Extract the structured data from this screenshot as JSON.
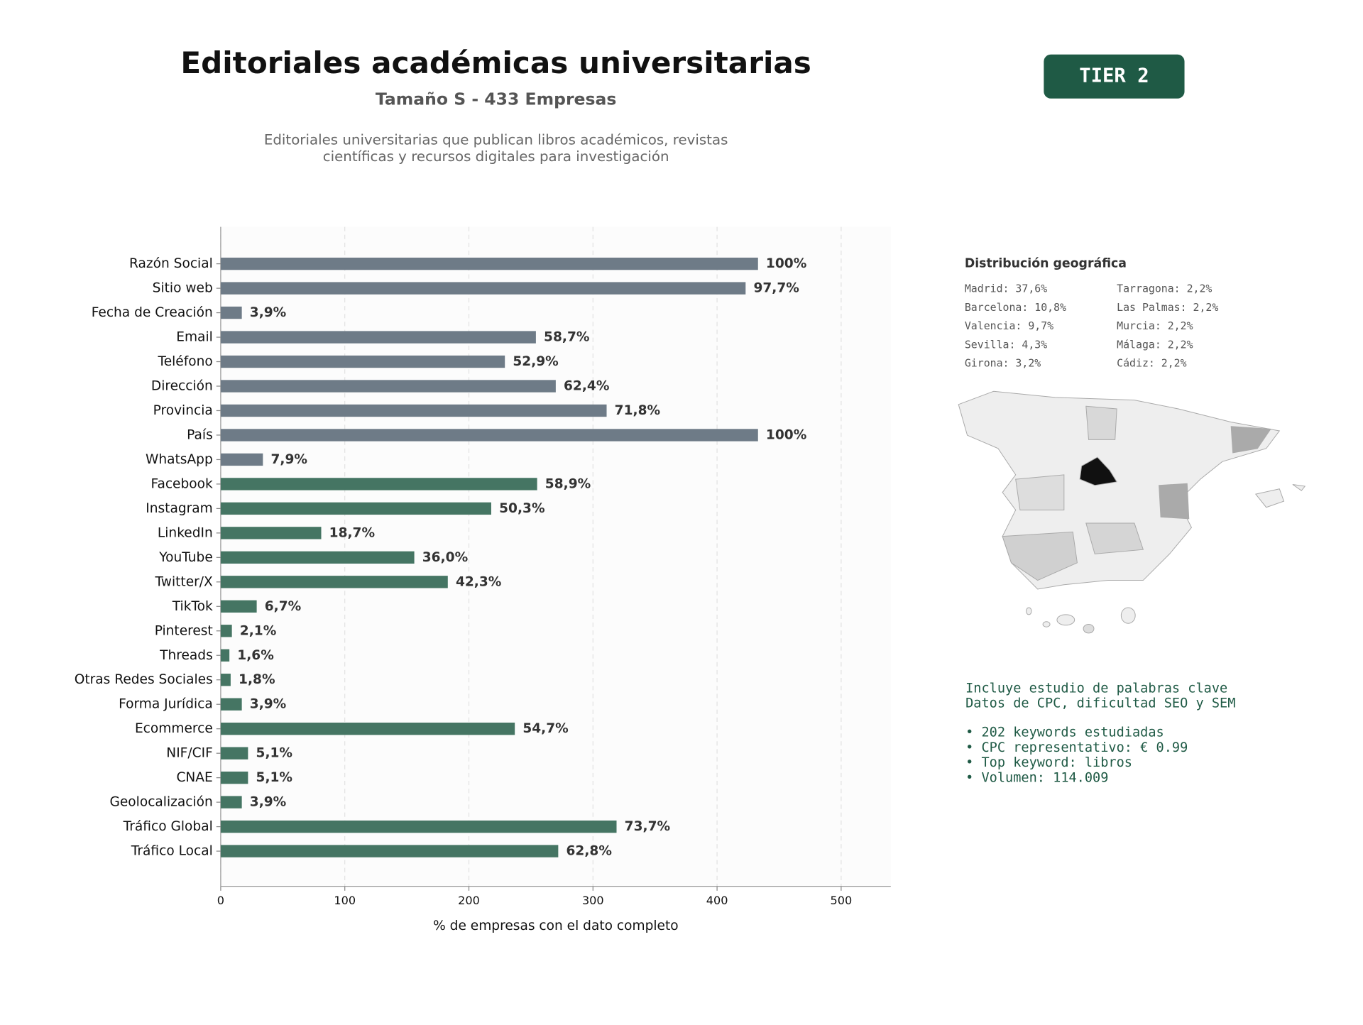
{
  "chart_data": {
    "type": "bar",
    "orientation": "horizontal",
    "title": "Editoriales académicas universitarias",
    "subtitle": "Tamaño S - 433 Empresas",
    "description": [
      "Editoriales universitarias que publican libros académicos, revistas",
      "científicas y recursos digitales para investigación"
    ],
    "xlabel": "% de empresas con el dato completo",
    "categories": [
      "Razón Social",
      "Sitio web",
      "Fecha de Creación",
      "Email",
      "Teléfono",
      "Dirección",
      "Provincia",
      "País",
      "WhatsApp",
      "Facebook",
      "Instagram",
      "LinkedIn",
      "YouTube",
      "Twitter/X",
      "TikTok",
      "Pinterest",
      "Threads",
      "Otras Redes Sociales",
      "Forma Jurídica",
      "Ecommerce",
      "NIF/CIF",
      "CNAE",
      "Geolocalización",
      "Tráfico Global",
      "Tráfico Local"
    ],
    "values": [
      433,
      423,
      17,
      254,
      229,
      270,
      311,
      433,
      34,
      255,
      218,
      81,
      156,
      183,
      29,
      9,
      7,
      8,
      17,
      237,
      22,
      22,
      17,
      319,
      272
    ],
    "value_labels": [
      "100%",
      "97,7%",
      "3,9%",
      "58,7%",
      "52,9%",
      "62,4%",
      "71,8%",
      "100%",
      "7,9%",
      "58,9%",
      "50,3%",
      "18,7%",
      "36,0%",
      "42,3%",
      "6,7%",
      "2,1%",
      "1,6%",
      "1,8%",
      "3,9%",
      "54,7%",
      "5,1%",
      "5,1%",
      "3,9%",
      "73,7%",
      "62,8%"
    ],
    "colors": [
      "#6e7b87",
      "#6e7b87",
      "#6e7b87",
      "#6e7b87",
      "#6e7b87",
      "#6e7b87",
      "#6e7b87",
      "#6e7b87",
      "#6e7b87",
      "#457563",
      "#457563",
      "#457563",
      "#457563",
      "#457563",
      "#457563",
      "#457563",
      "#457563",
      "#457563",
      "#457563",
      "#457563",
      "#457563",
      "#457563",
      "#457563",
      "#457563",
      "#457563"
    ],
    "xlim": [
      0,
      540
    ],
    "xticks": [
      0,
      100,
      200,
      300,
      400,
      500
    ],
    "grid": true
  },
  "badge": "TIER 2",
  "geo": {
    "title": "Distribución geográfica",
    "items": [
      "Madrid: 37,6%",
      "Barcelona: 10,8%",
      "Valencia: 9,7%",
      "Sevilla: 4,3%",
      "Girona: 3,2%",
      "Tarragona: 2,2%",
      "Las Palmas: 2,2%",
      "Murcia: 2,2%",
      "Málaga: 2,2%",
      "Cádiz: 2,2%"
    ]
  },
  "keywords": {
    "lines": [
      "Incluye estudio de palabras clave",
      "Datos de CPC, dificultad SEO y SEM"
    ],
    "bullets": [
      "• 202 keywords estudiadas",
      "• CPC representativo: € 0.99",
      "• Top keyword: libros",
      "• Volumen: 114.009"
    ]
  }
}
